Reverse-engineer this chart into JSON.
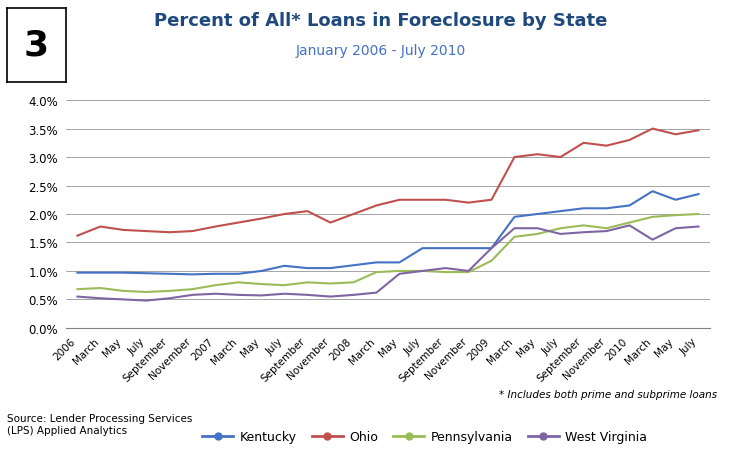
{
  "title": "Percent of All* Loans in Foreclosure by State",
  "subtitle": "January 2006 - July 2010",
  "figure_number": "3",
  "source_text": "Source: Lender Processing Services\n(LPS) Applied Analytics",
  "footnote": "* Includes both prime and subprime loans",
  "ylim": [
    0.0,
    0.042
  ],
  "yticks": [
    0.0,
    0.005,
    0.01,
    0.015,
    0.02,
    0.025,
    0.03,
    0.035,
    0.04
  ],
  "ytick_labels": [
    "0.0%",
    "0.5%",
    "1.0%",
    "1.5%",
    "2.0%",
    "2.5%",
    "3.0%",
    "3.5%",
    "4.0%"
  ],
  "x_labels": [
    "2006",
    "March",
    "May",
    "July",
    "September",
    "November",
    "2007",
    "March",
    "May",
    "July",
    "September",
    "November",
    "2008",
    "March",
    "May",
    "July",
    "September",
    "November",
    "2009",
    "March",
    "May",
    "July",
    "September",
    "November",
    "2010",
    "March",
    "May",
    "July"
  ],
  "series_order": [
    "Kentucky",
    "Ohio",
    "Pennsylvania",
    "West Virginia"
  ],
  "series": {
    "Kentucky": {
      "color": "#4472C4",
      "values": [
        0.0097,
        0.0097,
        0.0097,
        0.0096,
        0.0095,
        0.0094,
        0.0095,
        0.0095,
        0.01,
        0.0109,
        0.0105,
        0.0105,
        0.011,
        0.0115,
        0.0115,
        0.014,
        0.014,
        0.014,
        0.014,
        0.0195,
        0.02,
        0.0205,
        0.021,
        0.021,
        0.0215,
        0.024,
        0.0225,
        0.0235
      ]
    },
    "Ohio": {
      "color": "#C0504D",
      "values": [
        0.0162,
        0.0178,
        0.0172,
        0.017,
        0.0168,
        0.017,
        0.0178,
        0.0185,
        0.0192,
        0.02,
        0.0205,
        0.0185,
        0.02,
        0.0215,
        0.0225,
        0.0225,
        0.0225,
        0.022,
        0.0225,
        0.03,
        0.0305,
        0.03,
        0.0325,
        0.032,
        0.033,
        0.035,
        0.034,
        0.0347
      ]
    },
    "Pennsylvania": {
      "color": "#9BBB59",
      "values": [
        0.0068,
        0.007,
        0.0065,
        0.0063,
        0.0065,
        0.0068,
        0.0075,
        0.008,
        0.0077,
        0.0075,
        0.008,
        0.0078,
        0.008,
        0.0098,
        0.01,
        0.01,
        0.0098,
        0.0098,
        0.0118,
        0.016,
        0.0165,
        0.0175,
        0.018,
        0.0175,
        0.0185,
        0.0195,
        0.0198,
        0.02
      ]
    },
    "West Virginia": {
      "color": "#8064A2",
      "values": [
        0.0055,
        0.0052,
        0.005,
        0.0048,
        0.0052,
        0.0058,
        0.006,
        0.0058,
        0.0057,
        0.006,
        0.0058,
        0.0055,
        0.0058,
        0.0062,
        0.0095,
        0.01,
        0.0105,
        0.01,
        0.014,
        0.0175,
        0.0175,
        0.0165,
        0.0168,
        0.017,
        0.018,
        0.0155,
        0.0175,
        0.0178
      ]
    }
  },
  "title_color": "#1F497D",
  "subtitle_color": "#4472C4",
  "grid_color": "#808080",
  "bg_color": "#FFFFFF"
}
